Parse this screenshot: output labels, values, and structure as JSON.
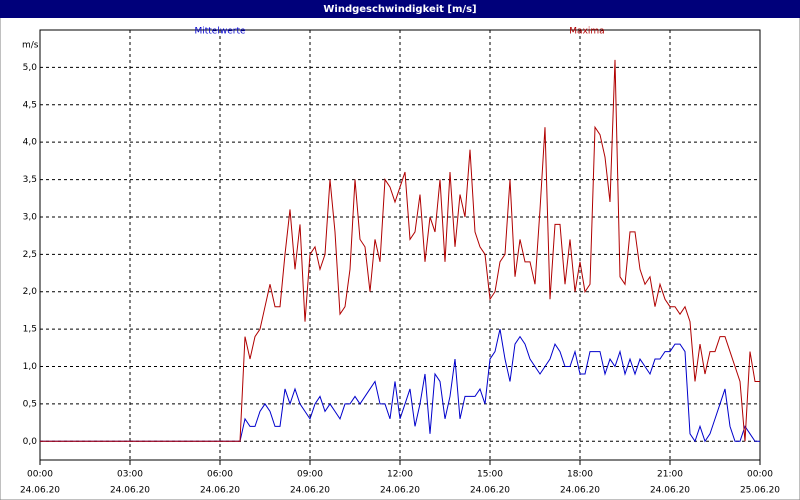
{
  "chart_data": {
    "type": "line",
    "title": "Windgeschwindigkeit [m/s]",
    "y_label": "m/s",
    "x": [
      0,
      400,
      410,
      420,
      430,
      440,
      450,
      460,
      470,
      480,
      490,
      500,
      510,
      520,
      530,
      540,
      550,
      560,
      570,
      580,
      590,
      600,
      610,
      620,
      630,
      640,
      650,
      660,
      670,
      680,
      690,
      700,
      710,
      720,
      730,
      740,
      750,
      760,
      770,
      780,
      790,
      800,
      810,
      820,
      830,
      840,
      850,
      860,
      870,
      880,
      890,
      900,
      910,
      920,
      930,
      940,
      950,
      960,
      970,
      980,
      990,
      1000,
      1010,
      1020,
      1030,
      1040,
      1050,
      1060,
      1070,
      1080,
      1090,
      1100,
      1110,
      1120,
      1130,
      1140,
      1150,
      1160,
      1170,
      1180,
      1190,
      1200,
      1210,
      1220,
      1230,
      1240,
      1250,
      1260,
      1270,
      1280,
      1290,
      1300,
      1310,
      1320,
      1330,
      1340,
      1350,
      1360,
      1370,
      1380,
      1390,
      1400,
      1410,
      1420,
      1430,
      1440
    ],
    "series": [
      {
        "name": "Mittelwerte",
        "color": "#0000cc",
        "values": [
          0,
          0.0,
          0.3,
          0.2,
          0.2,
          0.4,
          0.5,
          0.4,
          0.2,
          0.2,
          0.7,
          0.5,
          0.7,
          0.5,
          0.4,
          0.3,
          0.5,
          0.6,
          0.4,
          0.5,
          0.4,
          0.3,
          0.5,
          0.5,
          0.6,
          0.5,
          0.6,
          0.7,
          0.8,
          0.5,
          0.5,
          0.3,
          0.8,
          0.3,
          0.5,
          0.7,
          0.2,
          0.5,
          0.9,
          0.1,
          0.9,
          0.8,
          0.3,
          0.6,
          1.1,
          0.3,
          0.6,
          0.6,
          0.6,
          0.7,
          0.5,
          1.1,
          1.2,
          1.5,
          1.1,
          0.8,
          1.3,
          1.4,
          1.3,
          1.1,
          1.0,
          0.9,
          1.0,
          1.1,
          1.3,
          1.2,
          1.0,
          1.0,
          1.2,
          0.9,
          0.9,
          1.2,
          1.2,
          1.2,
          0.9,
          1.1,
          1.0,
          1.2,
          0.9,
          1.1,
          0.9,
          1.1,
          1.0,
          0.9,
          1.1,
          1.1,
          1.2,
          1.2,
          1.3,
          1.3,
          1.2,
          0.1,
          0.0,
          0.2,
          0.0,
          0.1,
          0.3,
          0.5,
          0.7,
          0.2,
          0.0,
          0.0,
          0.2,
          0.1,
          0.0,
          0.0
        ]
      },
      {
        "name": "Maxima",
        "color": "#b00000",
        "values": [
          0,
          0.0,
          1.4,
          1.1,
          1.4,
          1.5,
          1.8,
          2.1,
          1.8,
          1.8,
          2.5,
          3.1,
          2.3,
          2.9,
          1.6,
          2.5,
          2.6,
          2.3,
          2.5,
          3.5,
          2.8,
          1.7,
          1.8,
          2.3,
          3.5,
          2.7,
          2.6,
          2.0,
          2.7,
          2.4,
          3.5,
          3.4,
          3.2,
          3.4,
          3.6,
          2.7,
          2.8,
          3.3,
          2.4,
          3.0,
          2.8,
          3.5,
          2.4,
          3.6,
          2.6,
          3.3,
          3.0,
          3.9,
          2.8,
          2.6,
          2.5,
          1.9,
          2.0,
          2.4,
          2.5,
          3.5,
          2.2,
          2.7,
          2.4,
          2.4,
          2.1,
          3.1,
          4.2,
          1.9,
          2.9,
          2.9,
          2.1,
          2.7,
          2.0,
          2.4,
          2.0,
          2.1,
          4.2,
          4.1,
          3.8,
          3.2,
          5.1,
          2.2,
          2.1,
          2.8,
          2.8,
          2.3,
          2.1,
          2.2,
          1.8,
          2.1,
          1.9,
          1.8,
          1.8,
          1.7,
          1.8,
          1.6,
          0.8,
          1.3,
          0.9,
          1.2,
          1.2,
          1.4,
          1.4,
          1.2,
          1.0,
          0.8,
          0.0,
          1.2,
          0.8,
          0.8
        ]
      }
    ],
    "xlim": [
      0,
      1440
    ],
    "xticks": [
      {
        "value": 0,
        "label": "00:00",
        "date": "24.06.20"
      },
      {
        "value": 180,
        "label": "03:00",
        "date": "24.06.20"
      },
      {
        "value": 360,
        "label": "06:00",
        "date": "24.06.20"
      },
      {
        "value": 540,
        "label": "09:00",
        "date": "24.06.20"
      },
      {
        "value": 720,
        "label": "12:00",
        "date": "24.06.20"
      },
      {
        "value": 900,
        "label": "15:00",
        "date": "24.06.20"
      },
      {
        "value": 1080,
        "label": "18:00",
        "date": "24.06.20"
      },
      {
        "value": 1260,
        "label": "21:00",
        "date": "24.06.20"
      },
      {
        "value": 1440,
        "label": "00:00",
        "date": "25.06.20"
      }
    ],
    "ylim": [
      -0.25,
      5.5
    ],
    "yticks": [
      {
        "value": 0,
        "label": "0,0"
      },
      {
        "value": 0.5,
        "label": "0,5"
      },
      {
        "value": 1,
        "label": "1,0"
      },
      {
        "value": 1.5,
        "label": "1,5"
      },
      {
        "value": 2,
        "label": "2,0"
      },
      {
        "value": 2.5,
        "label": "2,5"
      },
      {
        "value": 3,
        "label": "3,0"
      },
      {
        "value": 3.5,
        "label": "3,5"
      },
      {
        "value": 4,
        "label": "4,0"
      },
      {
        "value": 4.5,
        "label": "4,5"
      },
      {
        "value": 5,
        "label": "5,0"
      }
    ],
    "grid": true
  }
}
